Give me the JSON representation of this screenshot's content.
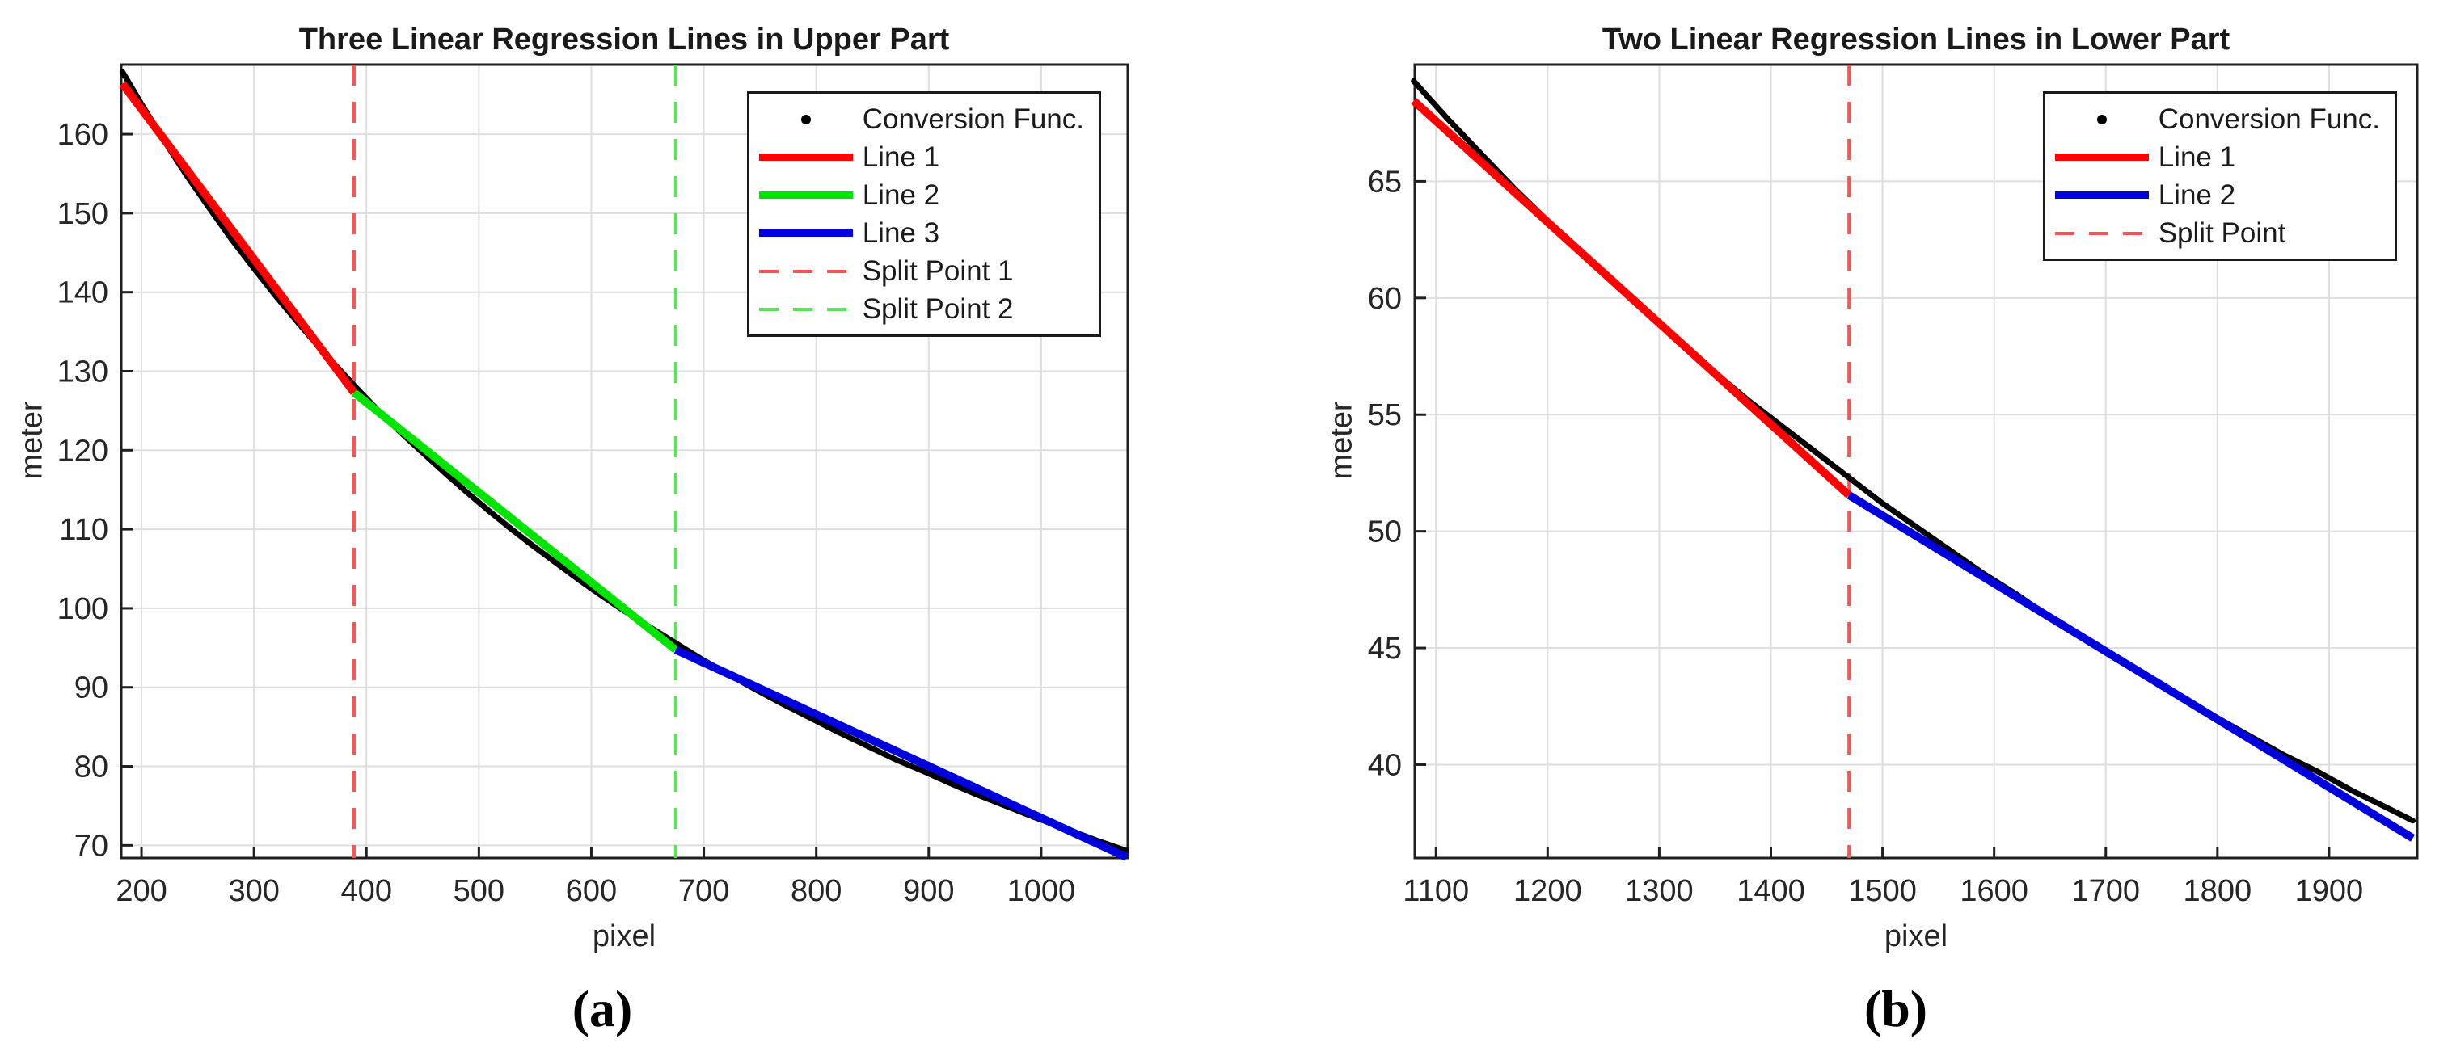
{
  "style_colors": {
    "background": "#ffffff",
    "axis": "#1f1f1f",
    "grid": "#dedede",
    "tick_label": "#262626",
    "title_text": "#1a1a1a"
  },
  "chart_data": [
    {
      "id": "upper",
      "type": "line",
      "title": "Three Linear Regression Lines in Upper Part",
      "xlabel": "pixel",
      "ylabel": "meter",
      "caption": "(a)",
      "grid": true,
      "legend_position": "northeast",
      "xlim": [
        182,
        1077
      ],
      "ylim": [
        68.4,
        168.8
      ],
      "xticks": [
        200,
        300,
        400,
        500,
        600,
        700,
        800,
        900,
        1000
      ],
      "yticks": [
        70,
        80,
        90,
        100,
        110,
        120,
        130,
        140,
        150,
        160
      ],
      "series": [
        {
          "name": "Conversion Func.",
          "style": "scatter",
          "color": "#000000",
          "points": [
            [
              183,
              167.9
            ],
            [
              200,
              163.8
            ],
            [
              220,
              159.2
            ],
            [
              240,
              154.8
            ],
            [
              260,
              150.7
            ],
            [
              280,
              146.7
            ],
            [
              300,
              143.0
            ],
            [
              320,
              139.4
            ],
            [
              340,
              136.0
            ],
            [
              360,
              132.7
            ],
            [
              389,
              128.2
            ],
            [
              410,
              125.1
            ],
            [
              430,
              122.3
            ],
            [
              450,
              119.7
            ],
            [
              470,
              117.1
            ],
            [
              490,
              114.6
            ],
            [
              510,
              112.2
            ],
            [
              530,
              109.9
            ],
            [
              550,
              107.7
            ],
            [
              570,
              105.6
            ],
            [
              590,
              103.5
            ],
            [
              610,
              101.5
            ],
            [
              630,
              99.6
            ],
            [
              650,
              97.8
            ],
            [
              675,
              95.6
            ],
            [
              700,
              93.4
            ],
            [
              720,
              91.8
            ],
            [
              745,
              89.8
            ],
            [
              770,
              87.9
            ],
            [
              795,
              86.1
            ],
            [
              820,
              84.3
            ],
            [
              845,
              82.6
            ],
            [
              870,
              80.9
            ],
            [
              895,
              79.4
            ],
            [
              920,
              77.8
            ],
            [
              945,
              76.3
            ],
            [
              970,
              74.9
            ],
            [
              995,
              73.5
            ],
            [
              1020,
              72.2
            ],
            [
              1048,
              70.7
            ],
            [
              1076,
              69.3
            ]
          ]
        },
        {
          "name": "Line 1",
          "style": "line",
          "color": "#ff0000",
          "points": [
            [
              183,
              166.4
            ],
            [
              389,
              127.3
            ]
          ]
        },
        {
          "name": "Line 2",
          "style": "line",
          "color": "#00e400",
          "points": [
            [
              389,
              127.3
            ],
            [
              675,
              94.75
            ]
          ]
        },
        {
          "name": "Line 3",
          "style": "line",
          "color": "#0000dd",
          "points": [
            [
              675,
              94.75
            ],
            [
              1076,
              68.5
            ]
          ]
        },
        {
          "name": "Split Point 1",
          "style": "vline",
          "color": "#ff5252",
          "x": 389
        },
        {
          "name": "Split Point 2",
          "style": "vline",
          "color": "#55e555",
          "x": 675
        }
      ]
    },
    {
      "id": "lower",
      "type": "line",
      "title": "Two Linear Regression Lines in Lower Part",
      "xlabel": "pixel",
      "ylabel": "meter",
      "caption": "(b)",
      "grid": true,
      "legend_position": "northeast",
      "xlim": [
        1081,
        1979
      ],
      "ylim": [
        36,
        70
      ],
      "xticks": [
        1100,
        1200,
        1300,
        1400,
        1500,
        1600,
        1700,
        1800,
        1900
      ],
      "yticks": [
        40,
        45,
        50,
        55,
        60,
        65
      ],
      "series": [
        {
          "name": "Conversion Func.",
          "style": "scatter",
          "color": "#000000",
          "points": [
            [
              1080,
              69.3
            ],
            [
              1110,
              67.7
            ],
            [
              1140,
              66.2
            ],
            [
              1170,
              64.7
            ],
            [
              1200,
              63.3
            ],
            [
              1230,
              61.9
            ],
            [
              1260,
              60.6
            ],
            [
              1290,
              59.3
            ],
            [
              1320,
              58.0
            ],
            [
              1350,
              56.8
            ],
            [
              1380,
              55.6
            ],
            [
              1410,
              54.5
            ],
            [
              1440,
              53.4
            ],
            [
              1470,
              52.3
            ],
            [
              1500,
              51.2
            ],
            [
              1530,
              50.2
            ],
            [
              1560,
              49.2
            ],
            [
              1590,
              48.2
            ],
            [
              1620,
              47.3
            ],
            [
              1650,
              46.3
            ],
            [
              1680,
              45.4
            ],
            [
              1710,
              44.5
            ],
            [
              1740,
              43.7
            ],
            [
              1770,
              42.8
            ],
            [
              1800,
              42.0
            ],
            [
              1830,
              41.2
            ],
            [
              1860,
              40.4
            ],
            [
              1890,
              39.7
            ],
            [
              1920,
              38.9
            ],
            [
              1950,
              38.2
            ],
            [
              1975,
              37.6
            ]
          ]
        },
        {
          "name": "Line 1",
          "style": "line",
          "color": "#ff0000",
          "points": [
            [
              1080,
              68.45
            ],
            [
              1470,
              51.55
            ]
          ]
        },
        {
          "name": "Line 2",
          "style": "line",
          "color": "#0000dd",
          "points": [
            [
              1470,
              51.55
            ],
            [
              1975,
              36.85
            ]
          ]
        },
        {
          "name": "Split Point",
          "style": "vline",
          "color": "#ff5252",
          "x": 1470
        }
      ]
    }
  ]
}
